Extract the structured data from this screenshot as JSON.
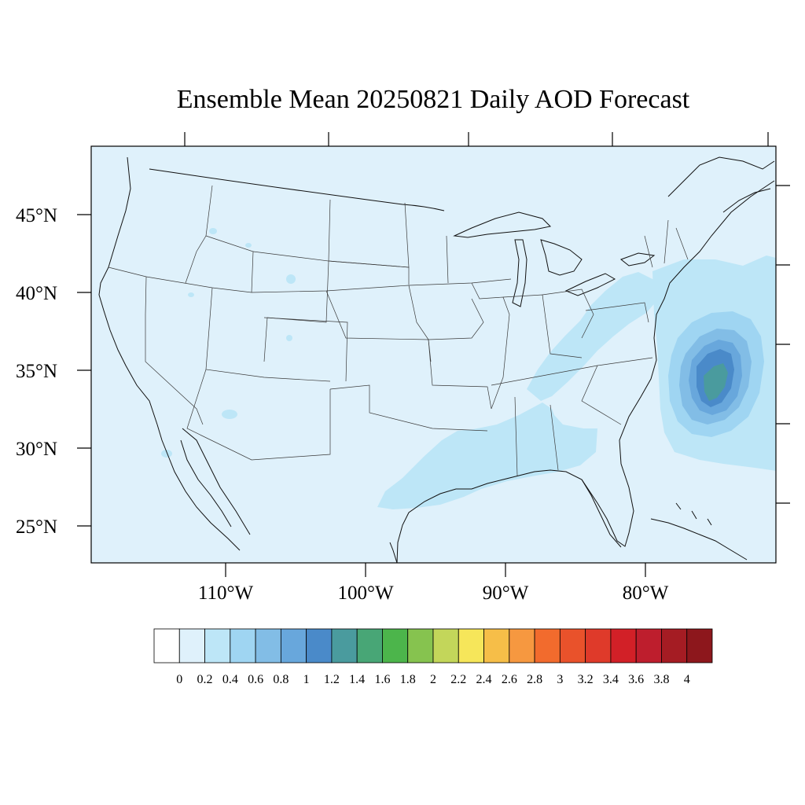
{
  "title": "Ensemble Mean 20250821 Daily AOD Forecast",
  "map": {
    "projection": "lambert-conformal",
    "lon_range": [
      -119.5,
      -70.5
    ],
    "lat_range": [
      22.5,
      49.5
    ],
    "background_color": "#dff1fb",
    "lat_labels": [
      "45°N",
      "40°N",
      "35°N",
      "30°N",
      "25°N"
    ],
    "lon_labels": [
      "110°W",
      "100°W",
      "90°W",
      "80°W"
    ]
  },
  "colorbar": {
    "labels": [
      "0",
      "0.2",
      "0.4",
      "0.6",
      "0.8",
      "1",
      "1.2",
      "1.4",
      "1.6",
      "1.8",
      "2",
      "2.2",
      "2.4",
      "2.6",
      "2.8",
      "3",
      "3.2",
      "3.4",
      "3.6",
      "3.8",
      "4"
    ],
    "colors": [
      "#ffffff",
      "#dff1fb",
      "#bde6f7",
      "#9fd5f2",
      "#82bde6",
      "#68a7dc",
      "#4a8ac9",
      "#4a9b9e",
      "#48a676",
      "#4cb54b",
      "#86c34f",
      "#c3d65a",
      "#f6e65a",
      "#f6be48",
      "#f69840",
      "#f26b2d",
      "#e9522b",
      "#df3a2a",
      "#d22027",
      "#be1e2d",
      "#a51c23",
      "#8d171c"
    ]
  },
  "aod_features": [
    {
      "name": "atlantic-smoke-plume",
      "peak_aod": 1.5
    },
    {
      "name": "gulf-coast-band",
      "peak_aod": 0.4
    },
    {
      "name": "appalachian-band",
      "peak_aod": 0.4
    }
  ]
}
